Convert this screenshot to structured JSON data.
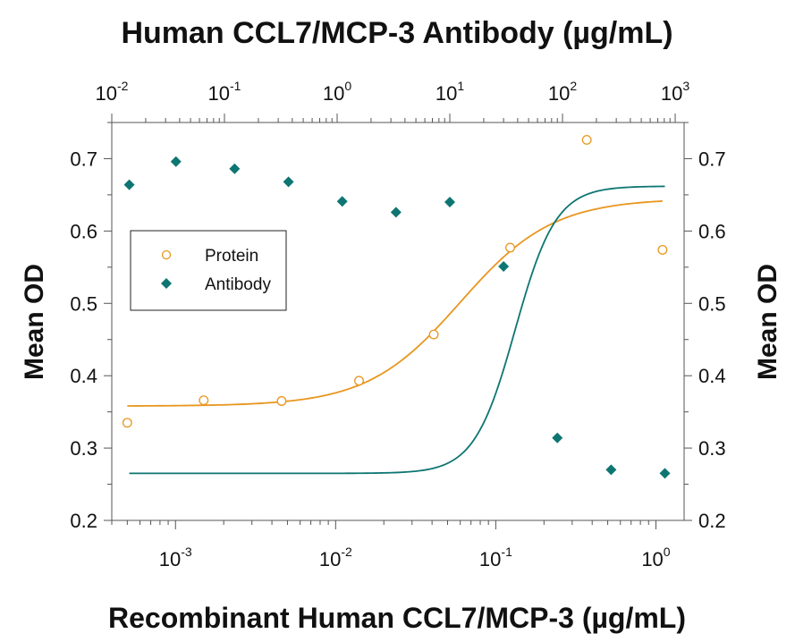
{
  "chart_data": {
    "type": "scatter",
    "top_title": "Human CCL7/MCP-3 Antibody (µg/mL)",
    "xlabel": "Recombinant Human CCL7/MCP-3 (µg/mL)",
    "ylabel_left": "Mean OD",
    "ylabel_right": "Mean OD",
    "x_scale": "log",
    "x_bottom_range": [
      0.0004,
      1.5
    ],
    "x_top_range": [
      0.01,
      1200
    ],
    "ylim": [
      0.2,
      0.75
    ],
    "y_ticks": [
      "0.2",
      "0.3",
      "0.4",
      "0.5",
      "0.6",
      "0.7"
    ],
    "x_bottom_ticks": [
      {
        "value": 0.001,
        "base": "10",
        "exp": "-3"
      },
      {
        "value": 0.01,
        "base": "10",
        "exp": "-2"
      },
      {
        "value": 0.1,
        "base": "10",
        "exp": "-1"
      },
      {
        "value": 1,
        "base": "10",
        "exp": "0"
      }
    ],
    "x_top_ticks": [
      {
        "value": 0.01,
        "base": "10",
        "exp": "-2"
      },
      {
        "value": 0.1,
        "base": "10",
        "exp": "-1"
      },
      {
        "value": 1,
        "base": "10",
        "exp": "0"
      },
      {
        "value": 10,
        "base": "10",
        "exp": "1"
      },
      {
        "value": 100,
        "base": "10",
        "exp": "2"
      },
      {
        "value": 1000,
        "base": "10",
        "exp": "3"
      }
    ],
    "legend": {
      "position": "left-middle",
      "entries": [
        {
          "label": "Protein",
          "marker": "open-circle"
        },
        {
          "label": "Antibody",
          "marker": "filled-diamond"
        }
      ]
    },
    "series": [
      {
        "name": "Protein",
        "axis": "bottom",
        "color": "#E8961E",
        "marker": "open-circle",
        "x": [
          0.0005,
          0.0015,
          0.0046,
          0.014,
          0.041,
          0.123,
          0.37,
          1.1
        ],
        "y": [
          0.335,
          0.366,
          0.365,
          0.393,
          0.457,
          0.577,
          0.726,
          0.574
        ],
        "fit": {
          "bottom": 0.358,
          "top": 0.645,
          "ec50": 0.06,
          "hill": 1.5
        }
      },
      {
        "name": "Antibody",
        "axis": "top",
        "color": "#0E7672",
        "marker": "filled-diamond",
        "x": [
          0.0143,
          0.0371,
          0.123,
          0.37,
          1.11,
          3.33,
          10,
          30,
          90,
          270,
          810
        ],
        "y": [
          0.664,
          0.696,
          0.686,
          0.668,
          0.641,
          0.626,
          0.64,
          0.551,
          0.314,
          0.27,
          0.265
        ],
        "fit": {
          "bottom": 0.265,
          "top": 0.662,
          "ec50": 38,
          "hill": 2.4
        }
      }
    ]
  }
}
